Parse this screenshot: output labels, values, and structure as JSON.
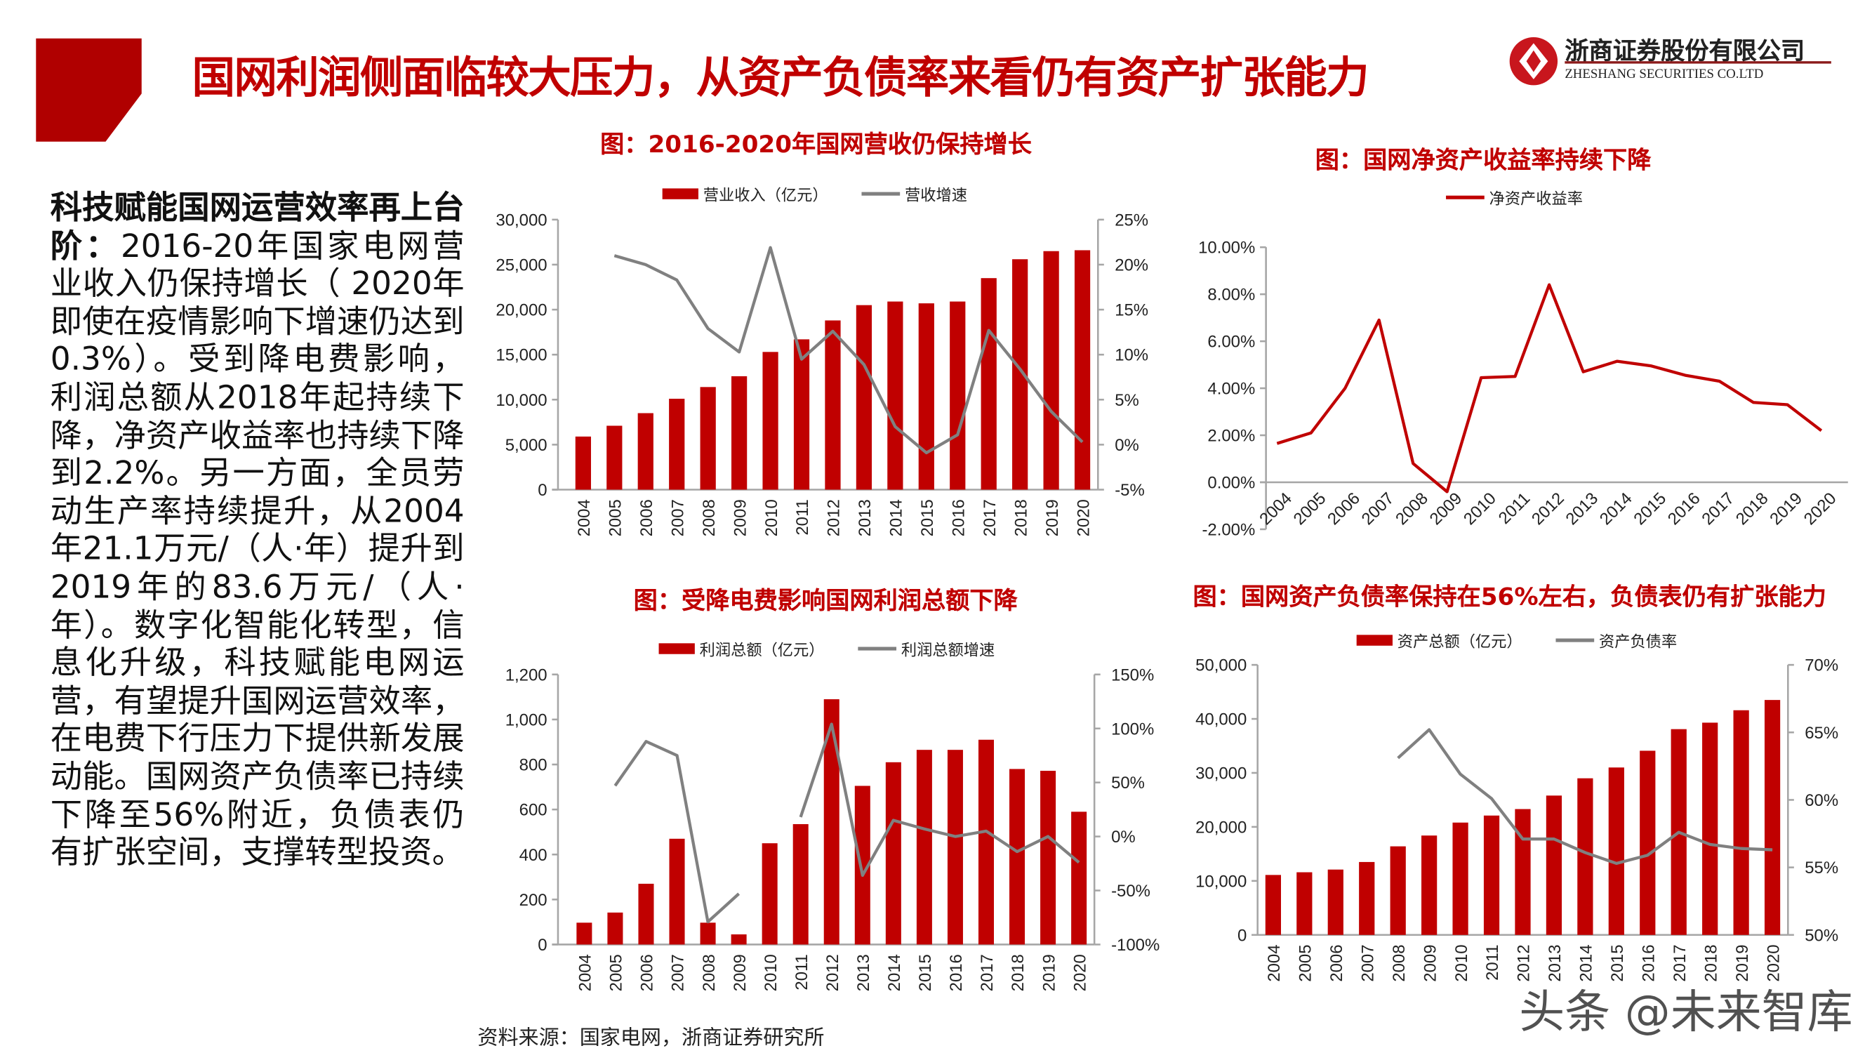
{
  "header": {
    "title": "国网利润侧面临较大压力，从资产负债率来看仍有资产扩张能力",
    "logo_cn": "浙商证券股份有限公司",
    "logo_en": "ZHESHANG SECURITIES CO.LTD",
    "brand_color": "#c00000"
  },
  "body": {
    "lead": "科技赋能国网运营效率再上台阶：",
    "text": "2016-20年国家电网营业收入仍保持增长（ 2020年即使在疫情影响下增速仍达到0.3%）。受到降电费影响，利润总额从2018年起持续下降，净资产收益率也持续下降到2.2%。另一方面，全员劳动生产率持续提升，从2004年21.1万元/（人·年）提升到2019年的83.6万元/（人·年）。数字化智能化转型，信息化升级，科技赋能电网运营，有望提升国网运营效率，在电费下行压力下提供新发展动能。国网资产负债率已持续下降至56%附近，负债表仍有扩张空间，支撑转型投资。"
  },
  "source": "资料来源：国家电网，浙商证券研究所",
  "watermark": "头条 @未来智库",
  "chart_data": [
    {
      "type": "bar+line",
      "title": "图：2016-2020年国网营收仍保持增长",
      "categories": [
        "2004",
        "2005",
        "2006",
        "2007",
        "2008",
        "2009",
        "2010",
        "2011",
        "2012",
        "2013",
        "2014",
        "2015",
        "2016",
        "2017",
        "2018",
        "2019",
        "2020"
      ],
      "series": [
        {
          "name": "营业收入（亿元）",
          "type": "bar",
          "axis": "left",
          "color": "#c00000",
          "values": [
            5900,
            7100,
            8500,
            10100,
            11400,
            12600,
            15300,
            16700,
            18800,
            20500,
            20900,
            20700,
            20900,
            23500,
            25600,
            26500,
            26600
          ]
        },
        {
          "name": "营收增速",
          "type": "line",
          "axis": "right",
          "color": "#808080",
          "values": [
            null,
            21.0,
            20.0,
            18.3,
            12.9,
            10.3,
            21.9,
            9.5,
            12.6,
            8.9,
            2.0,
            -0.9,
            1.1,
            12.7,
            8.4,
            3.7,
            0.3
          ]
        }
      ],
      "ylim_left": [
        0,
        30000
      ],
      "yticks_left": [
        "0",
        "5,000",
        "10,000",
        "15,000",
        "20,000",
        "25,000",
        "30,000"
      ],
      "ylim_right": [
        -5,
        25
      ],
      "yticks_right": [
        "-5%",
        "0%",
        "5%",
        "10%",
        "15%",
        "20%",
        "25%"
      ],
      "legend": "top"
    },
    {
      "type": "line",
      "title": "图：国网净资产收益率持续下降",
      "categories": [
        "2004",
        "2005",
        "2006",
        "2007",
        "2008",
        "2009",
        "2010",
        "2011",
        "2012",
        "2013",
        "2014",
        "2015",
        "2016",
        "2017",
        "2018",
        "2019",
        "2020"
      ],
      "series": [
        {
          "name": "净资产收益率",
          "type": "line",
          "axis": "left",
          "color": "#c00000",
          "values": [
            1.65,
            2.1,
            4.0,
            6.9,
            0.8,
            -0.4,
            4.45,
            4.5,
            8.4,
            4.7,
            5.15,
            4.95,
            4.55,
            4.3,
            3.4,
            3.3,
            2.2
          ]
        }
      ],
      "ylim_left": [
        -2,
        10
      ],
      "yticks_left": [
        "-2.00%",
        "0.00%",
        "2.00%",
        "4.00%",
        "6.00%",
        "8.00%",
        "10.00%"
      ],
      "legend": "top"
    },
    {
      "type": "bar+line",
      "title": "图：受降电费影响国网利润总额下降",
      "categories": [
        "2004",
        "2005",
        "2006",
        "2007",
        "2008",
        "2009",
        "2010",
        "2011",
        "2012",
        "2013",
        "2014",
        "2015",
        "2016",
        "2017",
        "2018",
        "2019",
        "2020"
      ],
      "series": [
        {
          "name": "利润总额（亿元）",
          "type": "bar",
          "axis": "left",
          "color": "#c00000",
          "values": [
            97,
            142,
            270,
            470,
            97,
            45,
            450,
            535,
            1090,
            705,
            810,
            865,
            865,
            910,
            780,
            772,
            590
          ]
        },
        {
          "name": "利润总额增速",
          "type": "line",
          "axis": "right",
          "color": "#808080",
          "values": [
            null,
            47,
            88,
            75,
            -79,
            -53,
            null,
            18,
            104,
            -36,
            15,
            7,
            0,
            5,
            -14,
            0,
            -24
          ]
        }
      ],
      "ylim_left": [
        0,
        1200
      ],
      "yticks_left": [
        "0",
        "200",
        "400",
        "600",
        "800",
        "1,000",
        "1,200"
      ],
      "ylim_right": [
        -100,
        150
      ],
      "yticks_right": [
        "-100%",
        "-50%",
        "0%",
        "50%",
        "100%",
        "150%"
      ],
      "legend": "top"
    },
    {
      "type": "bar+line",
      "title": "图：国网资产负债率保持在56%左右，负债表仍有扩张能力",
      "categories": [
        "2004",
        "2005",
        "2006",
        "2007",
        "2008",
        "2009",
        "2010",
        "2011",
        "2012",
        "2013",
        "2014",
        "2015",
        "2016",
        "2017",
        "2018",
        "2019",
        "2020"
      ],
      "series": [
        {
          "name": "资产总额（亿元）",
          "type": "bar",
          "axis": "left",
          "color": "#c00000",
          "values": [
            11100,
            11600,
            12100,
            13500,
            16400,
            18400,
            20800,
            22100,
            23300,
            25800,
            29000,
            31000,
            34100,
            38100,
            39300,
            41600,
            43500
          ]
        },
        {
          "name": "资产负债率",
          "type": "line",
          "axis": "right",
          "color": "#808080",
          "values": [
            null,
            null,
            null,
            null,
            63.1,
            65.2,
            61.9,
            60.1,
            57.1,
            57.1,
            56.1,
            55.3,
            55.9,
            57.6,
            56.7,
            56.4,
            56.3
          ]
        }
      ],
      "ylim_left": [
        0,
        50000
      ],
      "yticks_left": [
        "0",
        "10,000",
        "20,000",
        "30,000",
        "40,000",
        "50,000"
      ],
      "ylim_right": [
        50,
        70
      ],
      "yticks_right": [
        "50%",
        "55%",
        "60%",
        "65%",
        "70%"
      ],
      "legend": "top"
    }
  ]
}
